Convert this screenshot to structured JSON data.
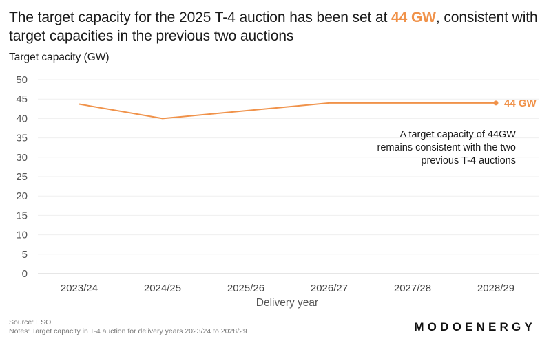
{
  "header": {
    "title_part1": "The target capacity for the 2025 T-4 auction has been set at ",
    "title_highlight": "44 GW",
    "title_part2": ", consistent with target capacities in the previous two auctions"
  },
  "footer": {
    "source": "Source: ESO",
    "notes": "Notes: Target capacity in T-4 auction for delivery years 2023/24 to 2028/29",
    "logo": "MODOENERGY"
  },
  "colors": {
    "accent": "#F0924A",
    "grid": "#efefef",
    "zero_line": "#dddddd"
  },
  "chart_data": {
    "type": "line",
    "title": "The target capacity for the 2025 T-4 auction has been set at 44 GW, consistent with target capacities in the previous two auctions",
    "xlabel": "Delivery year",
    "ylabel": "Target capacity (GW)",
    "categories": [
      "2023/24",
      "2024/25",
      "2025/26",
      "2026/27",
      "2027/28",
      "2028/29"
    ],
    "series": [
      {
        "name": "Target capacity",
        "values": [
          43.7,
          40.0,
          42.0,
          44.0,
          44.0,
          44.0
        ]
      }
    ],
    "ylim": [
      0,
      50
    ],
    "yticks": [
      0,
      5,
      10,
      15,
      20,
      25,
      30,
      35,
      40,
      45,
      50
    ],
    "grid": true,
    "legend": "none",
    "end_label": "44 GW",
    "annotation": [
      "A target capacity of 44GW",
      "remains consistent with the two",
      "previous T-4 auctions"
    ]
  }
}
